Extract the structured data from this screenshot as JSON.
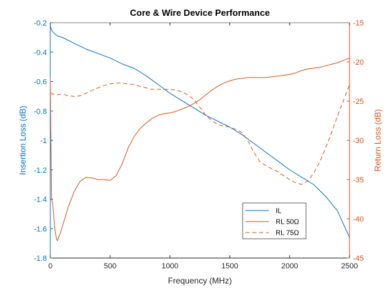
{
  "chart_data": {
    "type": "line",
    "title": "Core & Wire Device Performance",
    "xlabel": "Frequency (MHz)",
    "ylabel_left": "Insertion Loss (dB)",
    "ylabel_right": "Return Loss (dB)",
    "xlim": [
      0,
      2500
    ],
    "ylim_left": [
      -1.8,
      -0.2
    ],
    "ylim_right": [
      -45,
      -15
    ],
    "xticks": [
      "0",
      "500",
      "1000",
      "1500",
      "2000",
      "2500"
    ],
    "yticks_left": [
      "-0.2",
      "-0.4",
      "-0.6",
      "-0.8",
      "-1",
      "-1.2",
      "-1.4",
      "-1.6",
      "-1.8"
    ],
    "yticks_right": [
      "-15",
      "-20",
      "-25",
      "-30",
      "-35",
      "-40",
      "-45"
    ],
    "grid": false,
    "legend_position": "bottom-right",
    "colors": {
      "left_axis": "#0072BD",
      "right_axis": "#D95319",
      "il": "#0072BD",
      "rl": "#D95319"
    },
    "series": [
      {
        "name": "IL",
        "axis": "left",
        "style": "solid",
        "x": [
          0,
          10,
          30,
          60,
          100,
          200,
          300,
          400,
          500,
          600,
          700,
          800,
          900,
          1000,
          1100,
          1200,
          1300,
          1400,
          1500,
          1600,
          1700,
          1800,
          1900,
          2000,
          2100,
          2200,
          2300,
          2400,
          2500
        ],
        "y": [
          -0.22,
          -0.25,
          -0.27,
          -0.29,
          -0.3,
          -0.34,
          -0.38,
          -0.41,
          -0.44,
          -0.48,
          -0.51,
          -0.56,
          -0.62,
          -0.68,
          -0.73,
          -0.78,
          -0.83,
          -0.87,
          -0.91,
          -0.96,
          -1.02,
          -1.08,
          -1.14,
          -1.2,
          -1.25,
          -1.3,
          -1.38,
          -1.48,
          -1.66
        ]
      },
      {
        "name": "RL 50Ω",
        "axis": "right",
        "style": "solid",
        "x": [
          0,
          5,
          10,
          20,
          30,
          40,
          50,
          60,
          70,
          80,
          100,
          120,
          150,
          200,
          250,
          300,
          350,
          400,
          450,
          500,
          550,
          600,
          650,
          700,
          750,
          800,
          850,
          900,
          950,
          1000,
          1050,
          1100,
          1150,
          1200,
          1250,
          1300,
          1350,
          1400,
          1450,
          1500,
          1550,
          1600,
          1650,
          1700,
          1750,
          1800,
          1850,
          1900,
          1950,
          2000,
          2050,
          2100,
          2150,
          2200,
          2250,
          2300,
          2350,
          2400,
          2450,
          2500
        ],
        "y": [
          -22.0,
          -30.0,
          -37.5,
          -38.0,
          -40.0,
          -41.5,
          -42.5,
          -42.8,
          -42.3,
          -42.0,
          -41.0,
          -40.0,
          -38.5,
          -36.5,
          -35.2,
          -34.7,
          -34.8,
          -35.0,
          -35.0,
          -35.1,
          -34.5,
          -33.0,
          -31.0,
          -29.5,
          -28.5,
          -27.8,
          -27.2,
          -26.8,
          -26.6,
          -26.5,
          -26.3,
          -26.0,
          -25.7,
          -25.3,
          -24.8,
          -24.2,
          -23.6,
          -23.1,
          -22.7,
          -22.4,
          -22.2,
          -22.1,
          -22.0,
          -22.0,
          -22.0,
          -22.0,
          -21.9,
          -21.8,
          -21.7,
          -21.6,
          -21.4,
          -21.1,
          -20.9,
          -20.8,
          -20.7,
          -20.5,
          -20.3,
          -20.1,
          -19.8,
          -19.5
        ]
      },
      {
        "name": "RL 75Ω",
        "axis": "right",
        "style": "dashed",
        "x": [
          0,
          50,
          100,
          150,
          200,
          250,
          300,
          350,
          400,
          450,
          500,
          550,
          600,
          650,
          700,
          750,
          800,
          850,
          900,
          950,
          1000,
          1050,
          1100,
          1150,
          1200,
          1250,
          1300,
          1350,
          1400,
          1450,
          1500,
          1550,
          1600,
          1650,
          1700,
          1750,
          1800,
          1850,
          1900,
          1950,
          2000,
          2050,
          2100,
          2150,
          2200,
          2250,
          2300,
          2350,
          2400,
          2450,
          2500
        ],
        "y": [
          -24.0,
          -24.2,
          -24.1,
          -24.3,
          -24.4,
          -24.3,
          -24.0,
          -23.6,
          -23.3,
          -23.0,
          -22.8,
          -22.7,
          -22.7,
          -22.8,
          -22.9,
          -23.1,
          -23.3,
          -23.5,
          -23.5,
          -23.5,
          -23.5,
          -23.6,
          -23.8,
          -24.2,
          -24.8,
          -25.8,
          -26.8,
          -27.5,
          -28.0,
          -28.2,
          -28.3,
          -28.6,
          -29.0,
          -30.0,
          -31.5,
          -32.7,
          -33.2,
          -33.6,
          -34.0,
          -34.5,
          -35.0,
          -35.4,
          -35.6,
          -35.2,
          -34.2,
          -32.8,
          -31.0,
          -29.0,
          -26.9,
          -24.9,
          -22.9
        ]
      }
    ],
    "legend": [
      "IL",
      "RL 50Ω",
      "RL 75Ω"
    ]
  }
}
